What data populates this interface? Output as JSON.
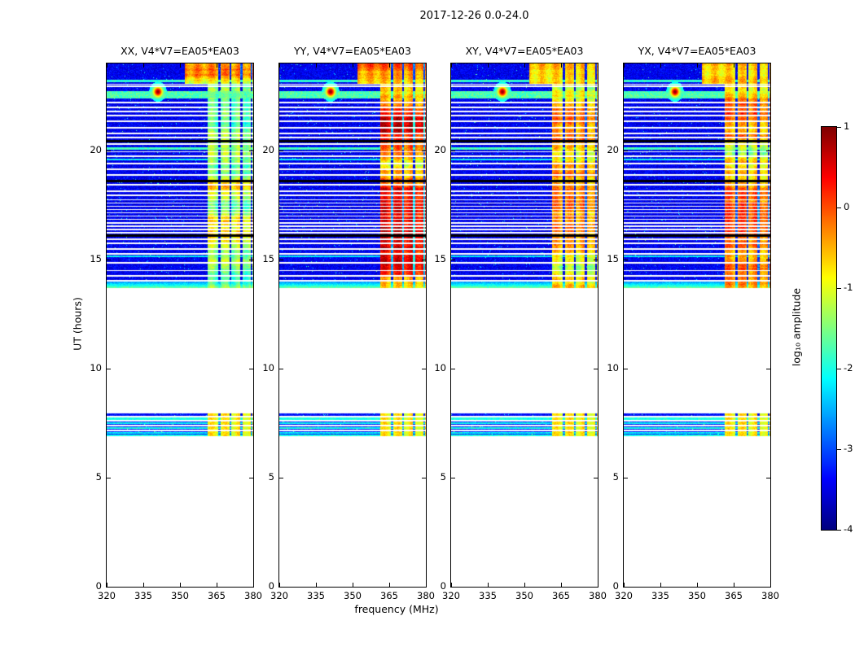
{
  "chart_data": {
    "type": "heatmap",
    "title": "2017-12-26 0.0-24.0",
    "xlabel": "frequency (MHz)",
    "ylabel": "UT (hours)",
    "x_range": [
      320,
      380
    ],
    "y_range": [
      0,
      24
    ],
    "x_ticks": [
      320,
      335,
      350,
      365,
      380
    ],
    "y_ticks": [
      0,
      5,
      10,
      15,
      20
    ],
    "colormap": "jet",
    "value_range": [
      -4,
      1
    ],
    "colorbar": {
      "label": "log₁₀ amplitude",
      "ticks": [
        1,
        0,
        -1,
        -2,
        -3,
        -4
      ]
    },
    "panels": [
      {
        "label": "XX, V4*V7=EA05*EA03",
        "seed": 101,
        "rfi_boost": 0.0
      },
      {
        "label": "YY, V4*V7=EA05*EA03",
        "seed": 202,
        "rfi_boost": 0.45
      },
      {
        "label": "XY, V4*V7=EA05*EA03",
        "seed": 303,
        "rfi_boost": -0.4
      },
      {
        "label": "YX, V4*V7=EA05*EA03",
        "seed": 404,
        "rfi_boost": -0.2
      }
    ],
    "line_half": 0.035,
    "black_half": 0.055,
    "blocks": [
      {
        "t0": 13.68,
        "t1": 24.0,
        "noise": -3.45,
        "rfi_mode": "profile",
        "has_transit": true,
        "has_bottom_band": true,
        "white_lines": [
          23.05,
          22.95,
          22.2,
          22.0,
          21.8,
          21.6,
          21.35,
          21.05,
          20.8,
          20.6,
          20.3,
          19.95,
          19.75,
          19.4,
          19.15,
          18.9,
          18.45,
          18.15,
          17.95,
          17.75,
          17.6,
          17.45,
          17.3,
          17.15,
          17.0,
          16.85,
          16.7,
          16.55,
          16.4,
          16.25,
          15.95,
          15.75,
          15.5,
          15.25,
          14.85,
          14.5,
          14.25,
          14.05
        ],
        "black_lines": [
          20.45,
          18.62,
          16.12
        ],
        "cyan_lines": [
          {
            "t": 23.2,
            "v": -1.9,
            "half": 0.05
          },
          {
            "t": 20.1,
            "v": -1.8,
            "half": 0.05
          },
          {
            "t": 19.6,
            "v": -2.1,
            "half": 0.04
          },
          {
            "t": 15.15,
            "v": -2.2,
            "half": 0.04
          }
        ]
      },
      {
        "t0": 6.9,
        "t1": 7.95,
        "noise": -3.3,
        "rfi_mode": "flat",
        "rfi_v": -0.85,
        "has_transit": false,
        "has_bottom_band": false,
        "white_lines": [
          7.8,
          7.6,
          7.38,
          7.18
        ],
        "black_lines": [],
        "cyan_lines": [
          {
            "t": 7.7,
            "v": -2.0,
            "half": 0.045
          },
          {
            "t": 7.5,
            "v": -2.1,
            "half": 0.045
          },
          {
            "t": 7.28,
            "v": -2.0,
            "half": 0.045
          },
          {
            "t": 7.05,
            "v": -2.2,
            "half": 0.04
          },
          {
            "t": 6.95,
            "v": -2.0,
            "half": 0.04
          }
        ]
      }
    ],
    "transit": {
      "t": 22.55,
      "t_half": 0.17,
      "v": -1.75,
      "blob_f": 341,
      "blob_sf": 1.3,
      "blob_t": 22.7,
      "blob_st": 0.16,
      "blob_v": 0.95
    },
    "bottom_band": {
      "t0": 13.68,
      "t1": 14.02,
      "v_min": -2.8,
      "v_max": -1.5
    },
    "rfi": {
      "f0": 361.5,
      "f1": 380,
      "gaps": [
        [
          365.8,
          366.5
        ],
        [
          370.3,
          371.0
        ],
        [
          374.8,
          375.5
        ],
        [
          379.0,
          379.6
        ]
      ],
      "wide_above": 23.05,
      "wide_f0": 352,
      "profile_start": -0.7,
      "profile_step": 0.4,
      "profile_min": -1.9,
      "profile_max": 0.3
    }
  }
}
